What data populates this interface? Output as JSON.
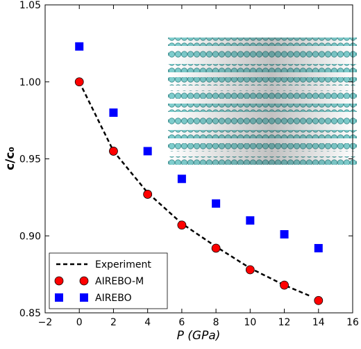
{
  "chart_data": {
    "type": "scatter",
    "xlabel": "P (GPa)",
    "ylabel": "c/c₀",
    "xlim": [
      -2,
      16
    ],
    "xticks": [
      {
        "value": -2,
        "label": "−2"
      },
      0,
      2,
      4,
      6,
      8,
      10,
      12,
      14,
      16
    ],
    "ylim": [
      0.85,
      1.05
    ],
    "yticks": [
      0.85,
      {
        "value": 0.9,
        "label": "0.90"
      },
      0.95,
      {
        "value": 1,
        "label": "1.00"
      },
      1.05
    ],
    "grid": false,
    "legend": "lower left",
    "series": [
      {
        "name": "Experiment",
        "color": "#000000",
        "linestyle": "dashed",
        "x": [
          0,
          2,
          4,
          6,
          8,
          10,
          12,
          13.5
        ],
        "values": [
          1.0,
          0.955,
          0.928,
          0.908,
          0.893,
          0.879,
          0.868,
          0.861
        ]
      },
      {
        "name": "AIREBO-M",
        "color": "#ff0000",
        "marker": "circle",
        "x": [
          0,
          2,
          4,
          6,
          8,
          10,
          12,
          14
        ],
        "values": [
          1.0,
          0.955,
          0.927,
          0.907,
          0.892,
          0.878,
          0.868,
          0.858
        ]
      },
      {
        "name": "AIREBO",
        "color": "#0000ff",
        "marker": "square",
        "x": [
          0,
          2,
          4,
          6,
          8,
          10,
          12,
          14
        ],
        "values": [
          1.023,
          0.98,
          0.955,
          0.937,
          0.921,
          0.91,
          0.901,
          0.892
        ]
      }
    ]
  }
}
